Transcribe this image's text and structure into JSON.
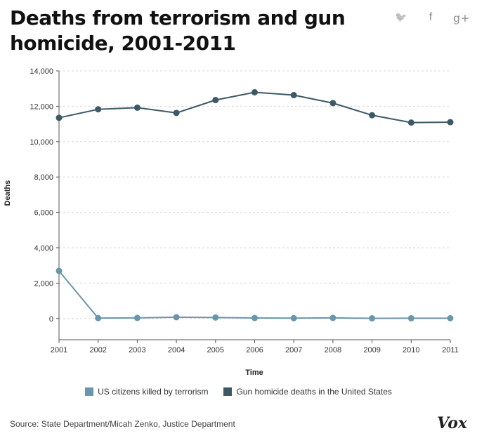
{
  "header": {
    "title": "Deaths from terrorism and gun homicide, 2001-2011"
  },
  "share": {
    "twitter_glyph": "🐦",
    "facebook_glyph": "f",
    "gplus_glyph": "g+"
  },
  "colors": {
    "terrorism": "#6a96ab",
    "guns": "#3d5966",
    "grid": "#d9d9d9"
  },
  "chart_data": {
    "type": "line",
    "title": "Deaths from terrorism and gun homicide, 2001-2011",
    "xlabel": "Time",
    "ylabel": "Deaths",
    "x": [
      2001,
      2002,
      2003,
      2004,
      2005,
      2006,
      2007,
      2008,
      2009,
      2010,
      2011
    ],
    "x_tick_labels": [
      "2001",
      "2002",
      "2003",
      "2004",
      "2005",
      "2006",
      "2007",
      "2008",
      "2009",
      "2010",
      "2011"
    ],
    "y_ticks": [
      0,
      2000,
      4000,
      6000,
      8000,
      10000,
      12000,
      14000
    ],
    "y_tick_labels": [
      "0",
      "2,000",
      "4,000",
      "6,000",
      "8,000",
      "10,000",
      "12,000",
      "14,000"
    ],
    "ylim": [
      -1200,
      14000
    ],
    "grid": true,
    "legend_position": "bottom",
    "series": [
      {
        "name": "US citizens killed by terrorism",
        "values": [
          2690,
          23,
          35,
          74,
          56,
          28,
          19,
          33,
          9,
          15,
          17
        ]
      },
      {
        "name": "Gun homicide deaths in the United States",
        "values": [
          11348,
          11829,
          11920,
          11624,
          12352,
          12791,
          12632,
          12179,
          11493,
          11078,
          11101
        ]
      }
    ]
  },
  "footer": {
    "source": "Source: State Department/Micah Zenko, Justice Department",
    "logo": "Vox"
  }
}
